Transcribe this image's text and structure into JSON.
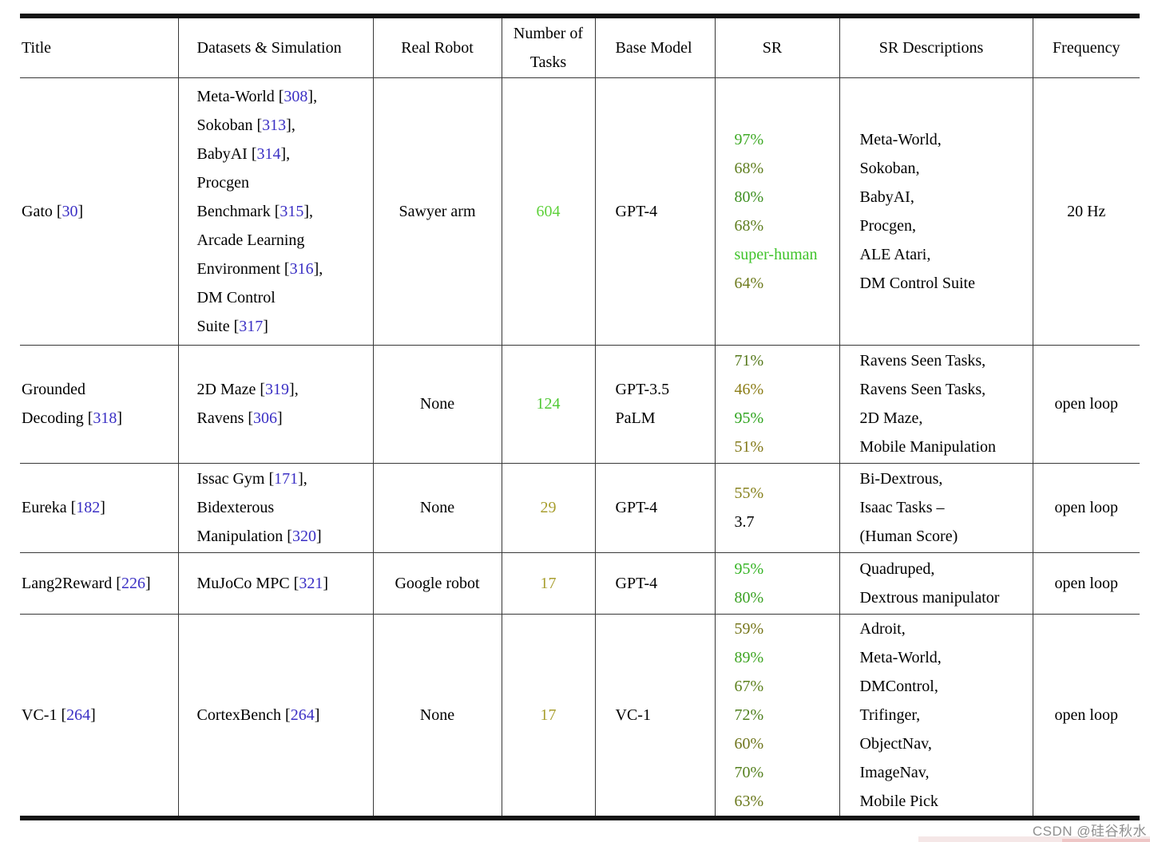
{
  "watermark": {
    "text": "CSDN @硅谷秋水"
  },
  "colors": {
    "citation": "#3a2fc4",
    "bright_green": "#3fc32a",
    "olive": "#a89e2e"
  },
  "columns": [
    {
      "key": "title",
      "label": "Title"
    },
    {
      "key": "datasets",
      "label": "Datasets & Simulation"
    },
    {
      "key": "real_robot",
      "label": "Real Robot"
    },
    {
      "key": "num_tasks",
      "label": "Number of Tasks"
    },
    {
      "key": "base_model",
      "label": "Base Model"
    },
    {
      "key": "sr",
      "label": "SR"
    },
    {
      "key": "sr_desc",
      "label": "SR Descriptions"
    },
    {
      "key": "frequency",
      "label": "Frequency"
    }
  ],
  "rows": [
    {
      "title": [
        [
          {
            "t": "Gato ["
          },
          {
            "t": "30",
            "c": "cite"
          },
          {
            "t": "]"
          }
        ]
      ],
      "datasets": [
        [
          {
            "t": "Meta-World ["
          },
          {
            "t": "308",
            "c": "cite"
          },
          {
            "t": "],"
          }
        ],
        [
          {
            "t": "Sokoban ["
          },
          {
            "t": "313",
            "c": "cite"
          },
          {
            "t": "],"
          }
        ],
        [
          {
            "t": "BabyAI ["
          },
          {
            "t": "314",
            "c": "cite"
          },
          {
            "t": "],"
          }
        ],
        [
          {
            "t": "Procgen"
          }
        ],
        [
          {
            "t": "Benchmark ["
          },
          {
            "t": "315",
            "c": "cite"
          },
          {
            "t": "],"
          }
        ],
        [
          {
            "t": "Arcade Learning"
          }
        ],
        [
          {
            "t": "Environment ["
          },
          {
            "t": "316",
            "c": "cite"
          },
          {
            "t": "],"
          }
        ],
        [
          {
            "t": "DM Control"
          }
        ],
        [
          {
            "t": "Suite ["
          },
          {
            "t": "317",
            "c": "cite"
          },
          {
            "t": "]"
          }
        ]
      ],
      "real_robot": "Sawyer arm",
      "num_tasks": [
        [
          {
            "t": "604",
            "c": "#5ed13a"
          }
        ]
      ],
      "base_model": [
        "GPT-4"
      ],
      "sr": [
        [
          {
            "t": "97%",
            "c": "#3faa26"
          }
        ],
        [
          {
            "t": "68%",
            "c": "#5f7e1f"
          }
        ],
        [
          {
            "t": "80%",
            "c": "#3f9023"
          }
        ],
        [
          {
            "t": "68%",
            "c": "#5f7e1f"
          }
        ],
        [
          {
            "t": "super-human",
            "c": "#3fc32a"
          }
        ],
        [
          {
            "t": "64%",
            "c": "#6e7b1e"
          }
        ]
      ],
      "sr_desc": [
        "Meta-World,",
        "Sokoban,",
        "BabyAI,",
        "Procgen,",
        "ALE Atari,",
        "DM Control Suite"
      ],
      "frequency": "20 Hz"
    },
    {
      "title": [
        [
          {
            "t": "Grounded"
          }
        ],
        [
          {
            "t": "Decoding ["
          },
          {
            "t": "318",
            "c": "cite"
          },
          {
            "t": "]"
          }
        ]
      ],
      "datasets": [
        [
          {
            "t": "2D Maze ["
          },
          {
            "t": "319",
            "c": "cite"
          },
          {
            "t": "],"
          }
        ],
        [
          {
            "t": "Ravens ["
          },
          {
            "t": "306",
            "c": "cite"
          },
          {
            "t": "]"
          }
        ]
      ],
      "real_robot": "None",
      "num_tasks": [
        [
          {
            "t": "124",
            "c": "#4fc934"
          }
        ]
      ],
      "base_model": [
        "GPT-3.5",
        "PaLM"
      ],
      "sr": [
        [
          {
            "t": "71%",
            "c": "#56791c"
          }
        ],
        [
          {
            "t": "46%",
            "c": "#8c7d17"
          }
        ],
        [
          {
            "t": "95%",
            "c": "#2fa41f"
          }
        ],
        [
          {
            "t": "51%",
            "c": "#83791a"
          }
        ]
      ],
      "sr_desc": [
        "Ravens Seen Tasks,",
        "Ravens Seen Tasks,",
        "2D Maze,",
        "Mobile Manipulation"
      ],
      "frequency": "open loop"
    },
    {
      "title": [
        [
          {
            "t": "Eureka ["
          },
          {
            "t": "182",
            "c": "cite"
          },
          {
            "t": "]"
          }
        ]
      ],
      "datasets": [
        [
          {
            "t": "Issac Gym ["
          },
          {
            "t": "171",
            "c": "cite"
          },
          {
            "t": "],"
          }
        ],
        [
          {
            "t": "Bidexterous"
          }
        ],
        [
          {
            "t": "Manipulation ["
          },
          {
            "t": "320",
            "c": "cite"
          },
          {
            "t": "]"
          }
        ]
      ],
      "real_robot": "None",
      "num_tasks": [
        [
          {
            "t": "29",
            "c": "#a89e2e"
          }
        ]
      ],
      "base_model": [
        "GPT-4"
      ],
      "sr": [
        [
          {
            "t": "55%",
            "c": "#87811c"
          }
        ],
        [
          {
            "t": "3.7"
          }
        ]
      ],
      "sr_desc": [
        "Bi-Dextrous,",
        "Isaac Tasks –",
        "(Human Score)"
      ],
      "frequency": "open loop"
    },
    {
      "title": [
        [
          {
            "t": "Lang2Reward ["
          },
          {
            "t": "226",
            "c": "cite"
          },
          {
            "t": "]"
          }
        ]
      ],
      "datasets": [
        [
          {
            "t": "MuJoCo MPC ["
          },
          {
            "t": "321",
            "c": "cite"
          },
          {
            "t": "]"
          }
        ]
      ],
      "real_robot": "Google robot",
      "num_tasks": [
        [
          {
            "t": "17",
            "c": "#a89e2e"
          }
        ]
      ],
      "base_model": [
        "GPT-4"
      ],
      "sr": [
        [
          {
            "t": "95%",
            "c": "#35b424"
          }
        ],
        [
          {
            "t": "80%",
            "c": "#3aa123"
          }
        ]
      ],
      "sr_desc": [
        "Quadruped,",
        "Dextrous manipulator"
      ],
      "frequency": "open loop"
    },
    {
      "title": [
        [
          {
            "t": "VC-1 ["
          },
          {
            "t": "264",
            "c": "cite"
          },
          {
            "t": "]"
          }
        ]
      ],
      "datasets": [
        [
          {
            "t": "CortexBench ["
          },
          {
            "t": "264",
            "c": "cite"
          },
          {
            "t": "]"
          }
        ]
      ],
      "real_robot": "None",
      "num_tasks": [
        [
          {
            "t": "17",
            "c": "#a89e2e"
          }
        ]
      ],
      "base_model": [
        "VC-1"
      ],
      "sr": [
        [
          {
            "t": "59%",
            "c": "#76761b"
          }
        ],
        [
          {
            "t": "89%",
            "c": "#3fa523"
          }
        ],
        [
          {
            "t": "67%",
            "c": "#5d811d"
          }
        ],
        [
          {
            "t": "72%",
            "c": "#4f7f1e"
          }
        ],
        [
          {
            "t": "60%",
            "c": "#6f751c"
          }
        ],
        [
          {
            "t": "70%",
            "c": "#55801e"
          }
        ],
        [
          {
            "t": "63%",
            "c": "#6b791d"
          }
        ]
      ],
      "sr_desc": [
        "Adroit,",
        "Meta-World,",
        "DMControl,",
        "Trifinger,",
        "ObjectNav,",
        "ImageNav,",
        "Mobile Pick"
      ],
      "frequency": "open loop"
    }
  ]
}
